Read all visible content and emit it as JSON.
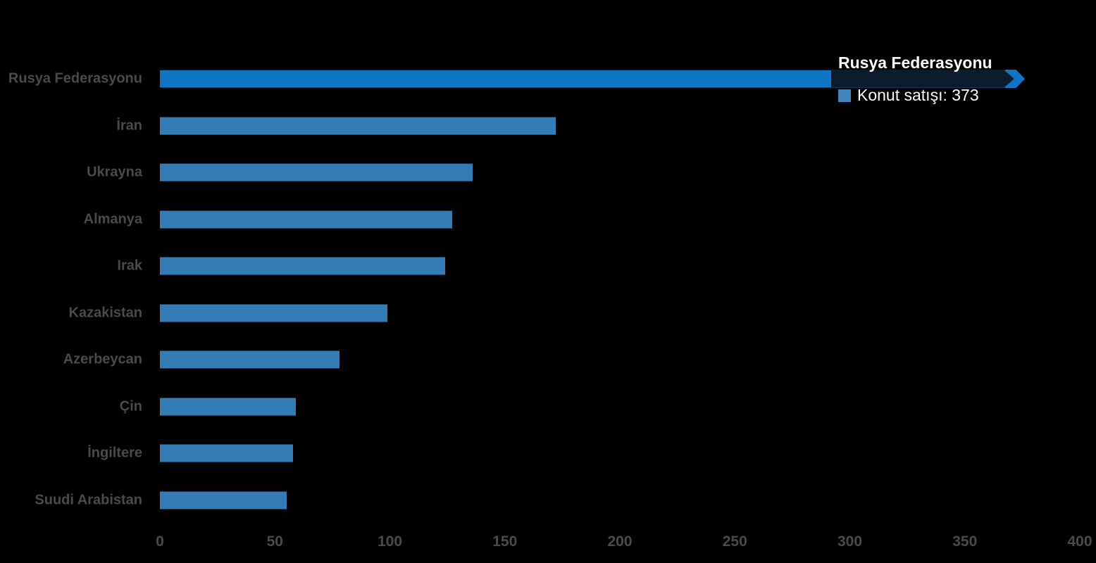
{
  "chart_data": {
    "type": "bar",
    "orientation": "horizontal",
    "title": "",
    "categories": [
      "Rusya Federasyonu",
      "İran",
      "Ukrayna",
      "Almanya",
      "Irak",
      "Kazakistan",
      "Azerbeycan",
      "Çin",
      "İngiltere",
      "Suudi Arabistan"
    ],
    "series": [
      {
        "name": "Konut satışı",
        "values": [
          373,
          172,
          136,
          127,
          124,
          99,
          78,
          59,
          58,
          55
        ]
      }
    ],
    "xlabel": "",
    "ylabel": "",
    "xlim": [
      0,
      400
    ],
    "x_ticks": [
      "0",
      "50",
      "100",
      "150",
      "200",
      "250",
      "300",
      "350",
      "400"
    ],
    "grid": false,
    "legend_position": "none",
    "background_color": "#000000",
    "bar_color": "#337cb6",
    "highlighted_bar_color": "#0e76c5",
    "highlighted_category": "Rusya Federasyonu",
    "axis_label_color": "#4a4a4a",
    "tooltip": {
      "title": "Rusya Federasyonu",
      "series_name": "Konut satışı",
      "value": 373,
      "label": "Konut satışı: 373",
      "swatch_color": "#3d85bd",
      "band_color": "#0c1c2c",
      "text_color": "#ffffff"
    }
  }
}
